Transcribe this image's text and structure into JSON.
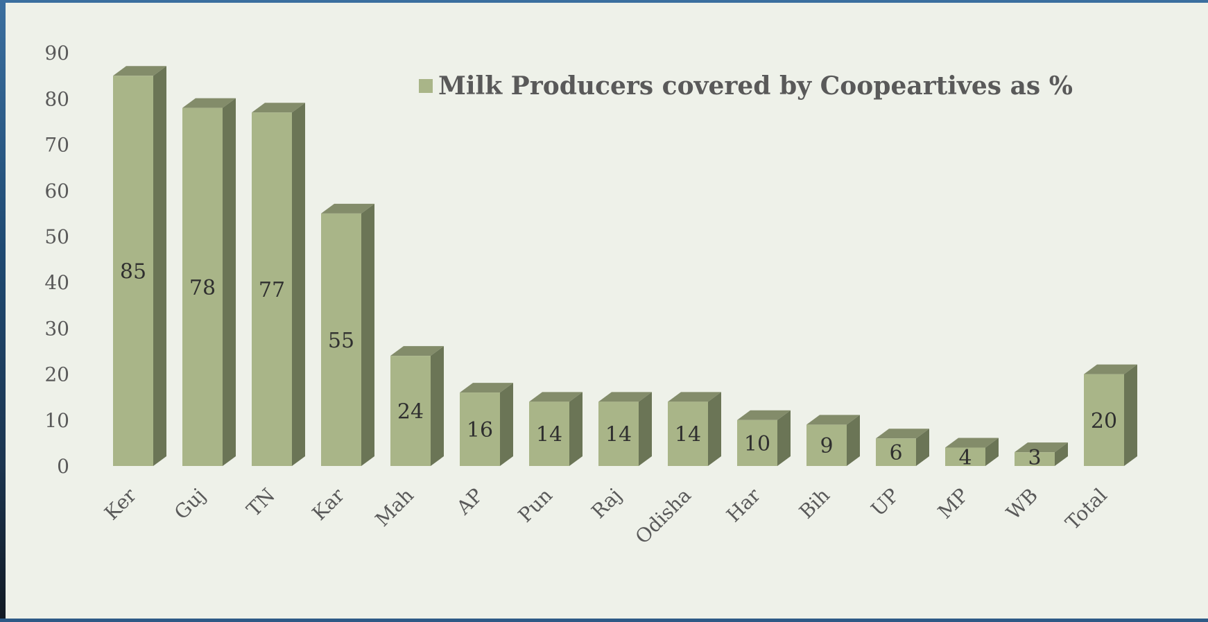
{
  "chart_data": {
    "type": "bar",
    "categories": [
      "Ker",
      "Guj",
      "TN",
      "Kar",
      "Mah",
      "AP",
      "Pun",
      "Raj",
      "Odisha",
      "Har",
      "Bih",
      "UP",
      "MP",
      "WB",
      "Total"
    ],
    "values": [
      85,
      78,
      77,
      55,
      24,
      16,
      14,
      14,
      14,
      10,
      9,
      6,
      4,
      3,
      20
    ],
    "series": [
      {
        "name": "Milk Producers covered by Coopeartives as %",
        "values": [
          85,
          78,
          77,
          55,
          24,
          16,
          14,
          14,
          14,
          10,
          9,
          6,
          4,
          3,
          20
        ]
      }
    ],
    "title": "",
    "xlabel": "",
    "ylabel": "",
    "ylim": [
      0,
      90
    ],
    "yticks": [
      0,
      10,
      20,
      30,
      40,
      50,
      60,
      70,
      80,
      90
    ],
    "grid": false,
    "legend": "top-right",
    "style": "3d-column"
  },
  "colors": {
    "background": "#eef1e9",
    "bar_front": "#a9b588",
    "bar_side": "#6b7556",
    "bar_top": "#838c6a",
    "text": "#595959"
  }
}
